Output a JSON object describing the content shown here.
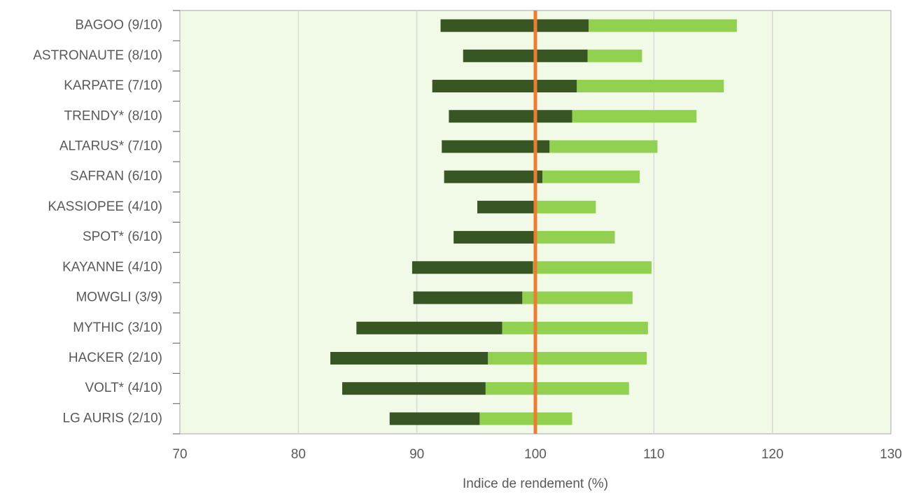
{
  "chart_data": {
    "type": "range_bar",
    "categories": [
      "BAGOO (9/10)",
      "ASTRONAUTE (8/10)",
      "KARPATE (7/10)",
      "TRENDY* (8/10)",
      "ALTARUS* (7/10)",
      "SAFRAN (6/10)",
      "KASSIOPEE (4/10)",
      "SPOT* (6/10)",
      "KAYANNE (4/10)",
      "MOWGLI (3/9)",
      "MYTHIC (3/10)",
      "HACKER (2/10)",
      "VOLT* (4/10)",
      "LG AURIS (2/10)"
    ],
    "low": [
      92.0,
      93.9,
      91.3,
      92.7,
      92.1,
      92.3,
      95.1,
      93.1,
      89.6,
      89.7,
      84.9,
      82.7,
      83.7,
      87.7
    ],
    "mid": [
      104.5,
      104.4,
      103.5,
      103.1,
      101.2,
      100.6,
      99.9,
      99.9,
      99.8,
      98.9,
      97.2,
      96.0,
      95.8,
      95.3
    ],
    "high": [
      117.0,
      109.0,
      115.9,
      113.6,
      110.3,
      108.8,
      105.1,
      106.7,
      109.8,
      108.2,
      109.5,
      109.4,
      107.9,
      103.1
    ],
    "colors": [
      "#375623",
      "#92d050"
    ],
    "reference": 100,
    "reference_color": "#ed7d31",
    "x_label": "Indice de rendement (%)",
    "xlim": [
      70,
      130
    ],
    "xticks": [
      70,
      80,
      90,
      100,
      110,
      120,
      130
    ],
    "grid": true
  }
}
